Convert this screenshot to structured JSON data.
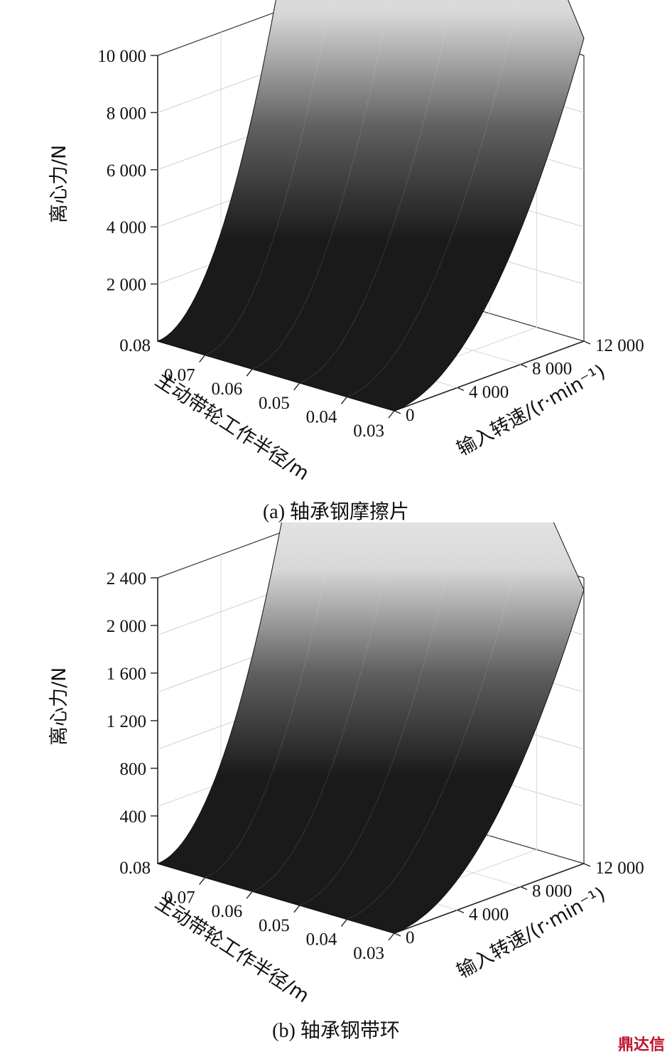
{
  "figure": {
    "captions": [
      "(a) 轴承钢摩擦片",
      "(b) 轴承钢带环"
    ],
    "watermark": "鼎达信"
  },
  "chart_data": [
    {
      "type": "surface",
      "caption": "(a) 轴承钢摩擦片",
      "zlabel": "离心力/N",
      "xlabel": "主动带轮工作半径/m",
      "ylabel": "输入转速/(r·min⁻¹)",
      "x_ticks": [
        "0.08",
        "0.07",
        "0.06",
        "0.05",
        "0.04",
        "0.03"
      ],
      "y_ticks": [
        "0",
        "4 000",
        "8 000",
        "12 000"
      ],
      "z_ticks": [
        "2 000",
        "4 000",
        "6 000",
        "8 000",
        "10 000"
      ],
      "x_range": [
        0.03,
        0.08
      ],
      "y_range": [
        0,
        12000
      ],
      "z_range": [
        0,
        10000
      ],
      "z_max": 10600,
      "grid": true
    },
    {
      "type": "surface",
      "caption": "(b) 轴承钢带环",
      "zlabel": "离心力/N",
      "xlabel": "主动带轮工作半径/m",
      "ylabel": "输入转速/(r·min⁻¹)",
      "x_ticks": [
        "0.08",
        "0.07",
        "0.06",
        "0.05",
        "0.04",
        "0.03"
      ],
      "y_ticks": [
        "0",
        "4 000",
        "8 000",
        "12 000"
      ],
      "z_ticks": [
        "400",
        "800",
        "1 200",
        "1 600",
        "2 000",
        "2 400"
      ],
      "x_range": [
        0.03,
        0.08
      ],
      "y_range": [
        0,
        12000
      ],
      "z_range": [
        0,
        2400
      ],
      "z_max": 2300,
      "grid": true
    }
  ]
}
